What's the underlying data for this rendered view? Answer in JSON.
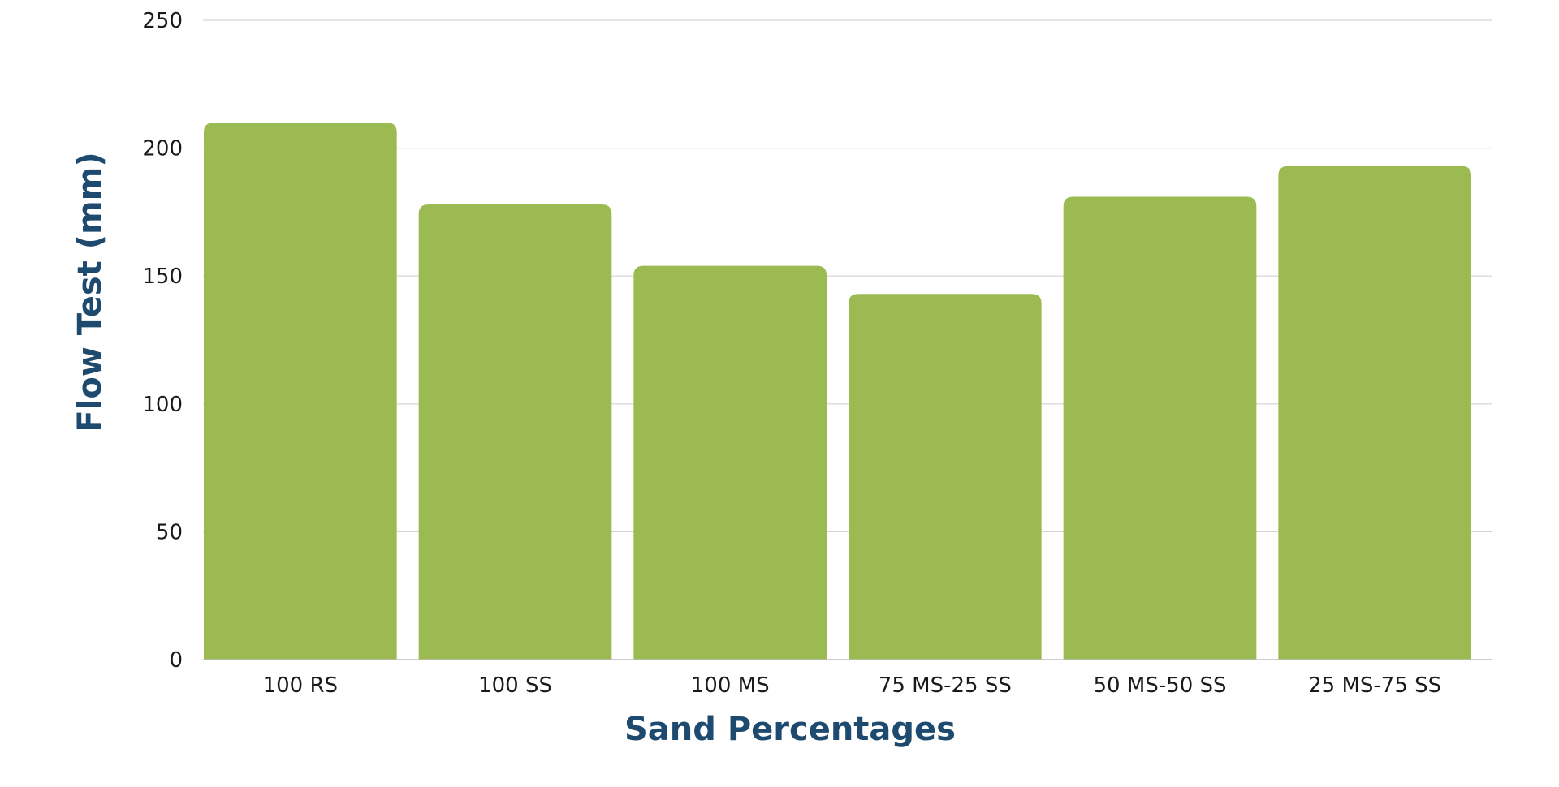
{
  "chart_data": {
    "type": "bar",
    "categories": [
      "100 RS",
      "100 SS",
      "100 MS",
      "75 MS-25 SS",
      "50 MS-50 SS",
      "25 MS-75 SS"
    ],
    "values": [
      210,
      178,
      154,
      143,
      181,
      193
    ],
    "title": "",
    "xlabel": "Sand Percentages",
    "ylabel": "Flow Test (mm)",
    "ylim": [
      0,
      250
    ],
    "yticks": [
      0,
      50,
      100,
      150,
      200,
      250
    ],
    "grid": true,
    "legend": "none",
    "colors": {
      "bar": "#9bbb52",
      "axis_title": "#1d4a6e",
      "gridline": "#d3d3d3",
      "tick_text": "#1a1a1a"
    }
  }
}
